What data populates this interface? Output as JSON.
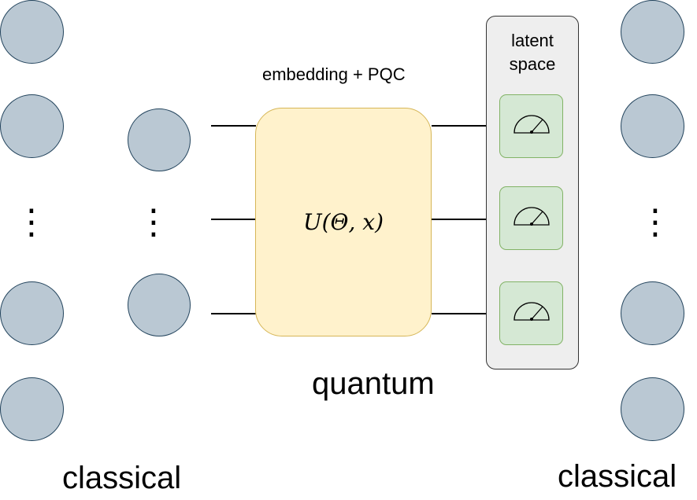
{
  "colors": {
    "node_fill": "#bac8d3",
    "node_stroke": "#23445d",
    "unitary_fill": "#fff2cc",
    "unitary_stroke": "#d6b656",
    "latent_fill": "#eeeeee",
    "measure_fill": "#d5e8d4",
    "measure_stroke": "#82b366"
  },
  "diagram": {
    "embedding_label": "embedding + PQC",
    "unitary_label": "U(Θ, x)",
    "latent_title_line1": "latent",
    "latent_title_line2": "space",
    "quantum_label": "quantum",
    "classical_left_label": "classical",
    "classical_right_label": "classical",
    "vertical_ellipsis": "⋮",
    "measurement_icon": "meter-icon"
  }
}
